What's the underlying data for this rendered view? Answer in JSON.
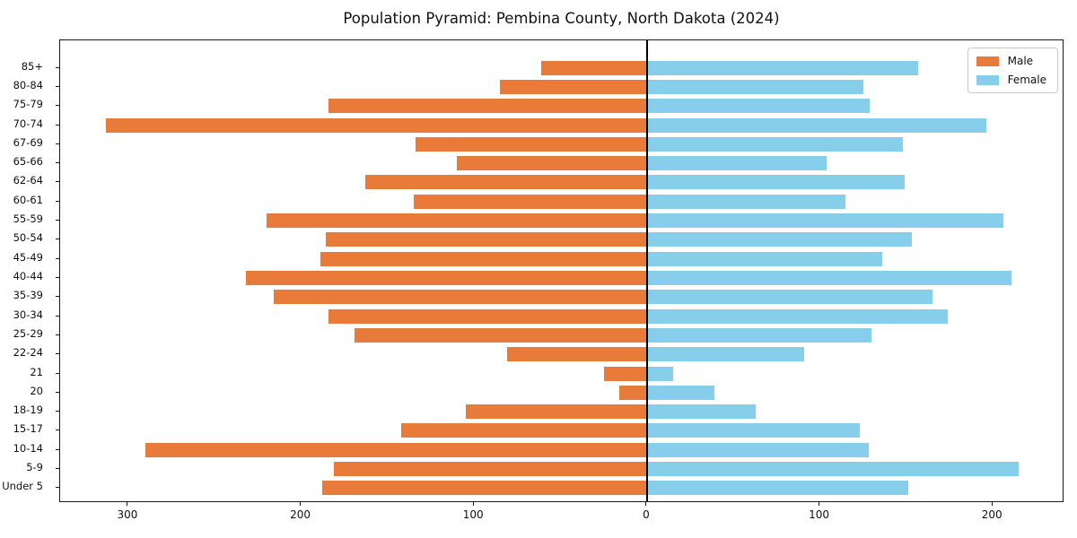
{
  "title": "Population Pyramid: Pembina County, North Dakota (2024)",
  "legend": {
    "male": "Male",
    "female": "Female"
  },
  "colors": {
    "male": "#e87b39",
    "female": "#87ceeb",
    "axis": "#1a1a1a",
    "zero_line": "#000000",
    "background": "#ffffff"
  },
  "chart_data": {
    "type": "bar",
    "subtype": "population-pyramid-horizontal",
    "title": "Population Pyramid: Pembina County, North Dakota (2024)",
    "categories_top_to_bottom": [
      "85+",
      "80-84",
      "75-79",
      "70-74",
      "67-69",
      "65-66",
      "62-64",
      "60-61",
      "55-59",
      "50-54",
      "45-49",
      "40-44",
      "35-39",
      "30-34",
      "25-29",
      "22-24",
      "21",
      "20",
      "18-19",
      "15-17",
      "10-14",
      "5-9",
      "Under 5"
    ],
    "series": [
      {
        "name": "Male",
        "side": "left",
        "color": "#e87b39",
        "values": [
          61,
          85,
          184,
          313,
          134,
          110,
          163,
          135,
          220,
          186,
          189,
          232,
          216,
          184,
          169,
          81,
          25,
          16,
          105,
          142,
          290,
          181,
          188
        ]
      },
      {
        "name": "Female",
        "side": "right",
        "color": "#87ceeb",
        "values": [
          157,
          125,
          129,
          196,
          148,
          104,
          149,
          115,
          206,
          153,
          136,
          211,
          165,
          174,
          130,
          91,
          15,
          39,
          63,
          123,
          128,
          215,
          151
        ]
      }
    ],
    "xticks": {
      "values": [
        -300,
        -200,
        -100,
        0,
        100,
        200
      ],
      "labels": [
        "300",
        "200",
        "100",
        "0",
        "100",
        "200"
      ]
    },
    "xlim": [
      -339.4,
      241.4
    ],
    "xlabel": "",
    "ylabel": "",
    "grid": false,
    "legend_position": "upper right",
    "zero_axis_line": true
  }
}
